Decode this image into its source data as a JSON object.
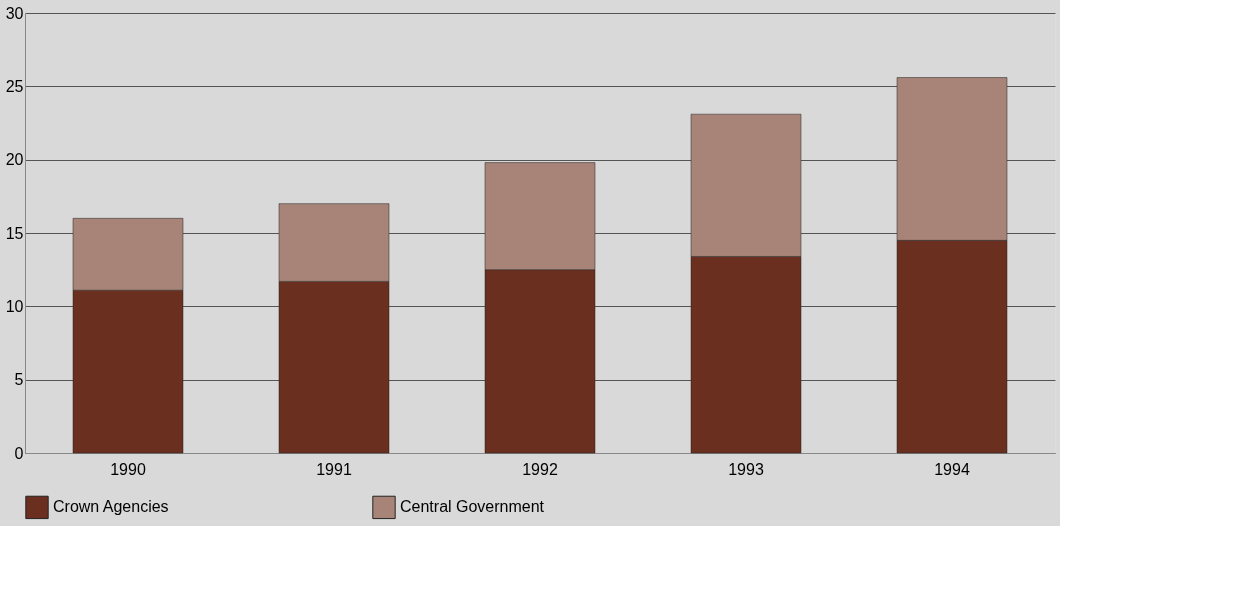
{
  "chart_data": {
    "type": "bar",
    "stacked": true,
    "categories": [
      "1990",
      "1991",
      "1992",
      "1993",
      "1994"
    ],
    "series": [
      {
        "name": "Crown Agencies",
        "color": "#6b2f1f",
        "values": [
          11.1,
          11.7,
          12.5,
          13.4,
          14.5
        ]
      },
      {
        "name": "Central Government",
        "color": "#a88478",
        "values": [
          4.9,
          5.3,
          7.3,
          9.7,
          11.1
        ]
      }
    ],
    "ylim": [
      0,
      30
    ],
    "yticks": [
      0,
      5,
      10,
      15,
      20,
      25,
      30
    ],
    "grid": "y",
    "legend": "bottom"
  }
}
